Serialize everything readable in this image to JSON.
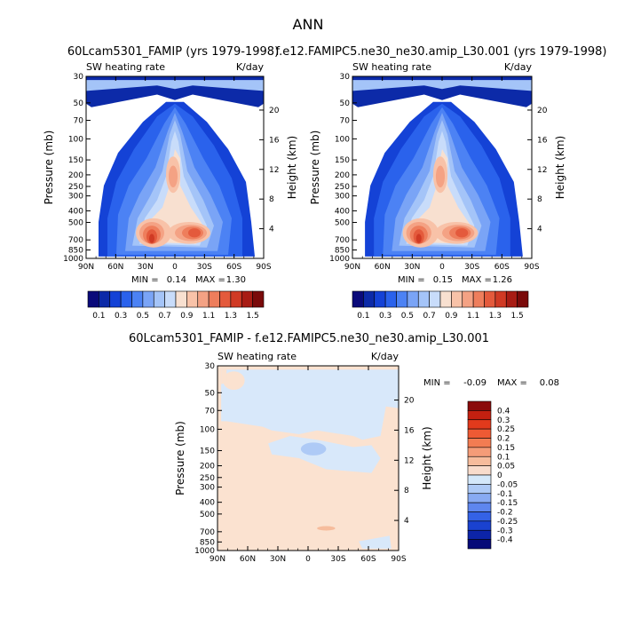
{
  "page_title": "ANN",
  "panels": [
    {
      "title": "60Lcam5301_FAMIP (yrs 1979-1998)",
      "subtitle_left": "SW heating rate",
      "subtitle_right": "K/day",
      "min_label": "MIN =",
      "min_value": "0.14",
      "max_label": "MAX =",
      "max_value": "1.30"
    },
    {
      "title": "f.e12.FAMIPC5.ne30_ne30.amip_L30.001 (yrs 1979-1998)",
      "subtitle_left": "SW heating rate",
      "subtitle_right": "K/day",
      "min_label": "MIN =",
      "min_value": "0.15",
      "max_label": "MAX =",
      "max_value": "1.26"
    },
    {
      "title": "60Lcam5301_FAMIP - f.e12.FAMIPC5.ne30_ne30.amip_L30.001",
      "subtitle_left": "SW heating rate",
      "subtitle_right": "K/day",
      "min_label": "MIN =",
      "min_value": "-0.09",
      "max_label": "MAX =",
      "max_value": "0.08"
    }
  ],
  "chart_data": [
    {
      "type": "heatmap",
      "title": "60Lcam5301_FAMIP (yrs 1979-1998)",
      "subtitle": "SW heating rate",
      "units": "K/day",
      "xlabel": "",
      "ylabel": "Pressure (mb)",
      "y2label": "Height (km)",
      "x_tick_labels": [
        "90N",
        "60N",
        "30N",
        "0",
        "30S",
        "60S",
        "90S"
      ],
      "x_ticks": [
        90,
        60,
        30,
        0,
        -30,
        -60,
        -90
      ],
      "y_tick_labels": [
        "30",
        "50",
        "70",
        "100",
        "150",
        "200",
        "250",
        "300",
        "400",
        "500",
        "700",
        "850",
        "1000"
      ],
      "y_ticks": [
        30,
        50,
        70,
        100,
        150,
        200,
        250,
        300,
        400,
        500,
        700,
        850,
        1000
      ],
      "y2_tick_labels": [
        "20",
        "16",
        "12",
        "8",
        "4"
      ],
      "y2_ticks": [
        20,
        16,
        12,
        8,
        4
      ],
      "ylim": [
        30,
        1000
      ],
      "yscale": "log",
      "levels": [
        0.1,
        0.3,
        0.5,
        0.7,
        0.9,
        1.1,
        1.3,
        1.5
      ],
      "min": 0.14,
      "max": 1.3
    },
    {
      "type": "heatmap",
      "title": "f.e12.FAMIPC5.ne30_ne30.amip_L30.001 (yrs 1979-1998)",
      "subtitle": "SW heating rate",
      "units": "K/day",
      "xlabel": "",
      "ylabel": "Pressure (mb)",
      "y2label": "Height (km)",
      "x_tick_labels": [
        "90N",
        "60N",
        "30N",
        "0",
        "30S",
        "60S",
        "90S"
      ],
      "x_ticks": [
        90,
        60,
        30,
        0,
        -30,
        -60,
        -90
      ],
      "y_tick_labels": [
        "30",
        "50",
        "70",
        "100",
        "150",
        "200",
        "250",
        "300",
        "400",
        "500",
        "700",
        "850",
        "1000"
      ],
      "y_ticks": [
        30,
        50,
        70,
        100,
        150,
        200,
        250,
        300,
        400,
        500,
        700,
        850,
        1000
      ],
      "y2_tick_labels": [
        "20",
        "16",
        "12",
        "8",
        "4"
      ],
      "y2_ticks": [
        20,
        16,
        12,
        8,
        4
      ],
      "ylim": [
        30,
        1000
      ],
      "yscale": "log",
      "levels": [
        0.1,
        0.3,
        0.5,
        0.7,
        0.9,
        1.1,
        1.3,
        1.5
      ],
      "min": 0.15,
      "max": 1.26
    },
    {
      "type": "heatmap",
      "title": "60Lcam5301_FAMIP - f.e12.FAMIPC5.ne30_ne30.amip_L30.001",
      "subtitle": "SW heating rate",
      "units": "K/day",
      "xlabel": "",
      "ylabel": "Pressure (mb)",
      "y2label": "Height (km)",
      "x_tick_labels": [
        "90N",
        "60N",
        "30N",
        "0",
        "30S",
        "60S",
        "90S"
      ],
      "x_ticks": [
        90,
        60,
        30,
        0,
        -30,
        -60,
        -90
      ],
      "y_tick_labels": [
        "30",
        "50",
        "70",
        "100",
        "150",
        "200",
        "250",
        "300",
        "400",
        "500",
        "700",
        "850",
        "1000"
      ],
      "y_ticks": [
        30,
        50,
        70,
        100,
        150,
        200,
        250,
        300,
        400,
        500,
        700,
        850,
        1000
      ],
      "y2_tick_labels": [
        "20",
        "16",
        "12",
        "8",
        "4"
      ],
      "y2_ticks": [
        20,
        16,
        12,
        8,
        4
      ],
      "ylim": [
        30,
        1000
      ],
      "yscale": "log",
      "levels": [
        0.4,
        0.3,
        0.25,
        0.2,
        0.15,
        0.1,
        0.05,
        0,
        -0.05,
        -0.1,
        -0.15,
        -0.2,
        -0.25,
        -0.3,
        -0.4
      ],
      "min": -0.09,
      "max": 0.08
    }
  ],
  "colorbars": {
    "main": {
      "labels": [
        "0.1",
        "0.3",
        "0.5",
        "0.7",
        "0.9",
        "1.1",
        "1.3",
        "1.5"
      ],
      "colors": [
        "#0a0a7a",
        "#0c2aa8",
        "#1442d6",
        "#2a62ec",
        "#4c82f4",
        "#7aa4f6",
        "#a4c4f8",
        "#c8dcfa",
        "#f8e0d0",
        "#f8c2a8",
        "#f4a284",
        "#ee7e5c",
        "#e45a3c",
        "#d03a24",
        "#a81c14",
        "#7a0a0a"
      ]
    },
    "diff": {
      "labels": [
        "0.4",
        "0.3",
        "0.25",
        "0.2",
        "0.15",
        "0.1",
        "0.05",
        "0",
        "-0.05",
        "-0.1",
        "-0.15",
        "-0.2",
        "-0.25",
        "-0.3",
        "-0.4"
      ],
      "colors": [
        "#8a0a0a",
        "#c42010",
        "#e23a1c",
        "#ee5a34",
        "#f27c52",
        "#f49c78",
        "#f6bc9c",
        "#f8dccc",
        "#d4e8fa",
        "#aecaf6",
        "#88aaf2",
        "#5e86ee",
        "#3462e6",
        "#1a42d0",
        "#0c24a8",
        "#060a78"
      ]
    }
  },
  "colors": {
    "c0": "#0a0a7a",
    "c1": "#0c2aa8",
    "c2": "#1442d6",
    "c3": "#2a62ec",
    "c4": "#4c82f4",
    "c5": "#7aa4f6",
    "c6": "#a4c4f8",
    "c7": "#c8dcfa",
    "c8": "#f8e0d0",
    "c9": "#f8c2a8",
    "c10": "#f4a284",
    "c11": "#ee7e5c",
    "c12": "#e45a3c",
    "c13": "#d03a24",
    "diff_pos": "#fbe2d0",
    "diff_neg": "#d8e8fa",
    "diff_neg2": "#aecaf6",
    "diff_pos2": "#f6bc9c"
  }
}
